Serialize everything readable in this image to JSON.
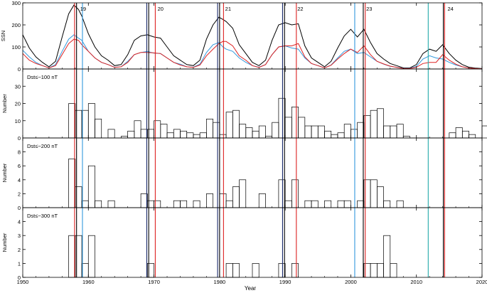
{
  "chart_data": {
    "type": "line+histogram",
    "xlabel": "Year",
    "xlim": [
      1950,
      2020
    ],
    "x_ticks": [
      "1950",
      "1960",
      "1970",
      "1980",
      "1990",
      "2000",
      "2010",
      "2020"
    ],
    "colors": {
      "ssn_total": "#000000",
      "ssn_north": "#3399dd",
      "ssn_south": "#dd2222",
      "line_navy": "#1a2a6c",
      "line_teal": "#22aaaa"
    },
    "cycles": [
      {
        "label": "19",
        "year": 1959.2
      },
      {
        "label": "20",
        "year": 1971.0
      },
      {
        "label": "21",
        "year": 1981.3
      },
      {
        "label": "22",
        "year": 1992.3
      },
      {
        "label": "23",
        "year": 2002.8
      },
      {
        "label": "24",
        "year": 2015.2
      }
    ],
    "vertical_lines": [
      {
        "year": 1957.9,
        "color": "#dd2222"
      },
      {
        "year": 1958.2,
        "color": "#000000"
      },
      {
        "year": 1959.1,
        "color": "#3399dd"
      },
      {
        "year": 1968.9,
        "color": "#1a2a6c"
      },
      {
        "year": 1969.2,
        "color": "#000000"
      },
      {
        "year": 1970.2,
        "color": "#dd2222"
      },
      {
        "year": 1979.7,
        "color": "#1a2a6c"
      },
      {
        "year": 1980.0,
        "color": "#000000"
      },
      {
        "year": 1980.6,
        "color": "#dd2222"
      },
      {
        "year": 1989.6,
        "color": "#1a2a6c"
      },
      {
        "year": 1989.9,
        "color": "#000000"
      },
      {
        "year": 1991.7,
        "color": "#dd2222"
      },
      {
        "year": 2000.6,
        "color": "#3399dd"
      },
      {
        "year": 2001.9,
        "color": "#000000"
      },
      {
        "year": 2002.2,
        "color": "#dd2222"
      },
      {
        "year": 2011.8,
        "color": "#22aaaa"
      },
      {
        "year": 2014.1,
        "color": "#000000"
      },
      {
        "year": 2014.3,
        "color": "#dd2222"
      }
    ],
    "ssn_panel": {
      "ylabel": "SSN",
      "ylim": [
        0,
        300
      ],
      "y_ticks": [
        "0",
        "100",
        "200",
        "300"
      ],
      "x": [
        1950,
        1951,
        1952,
        1953,
        1954,
        1955,
        1956,
        1957,
        1957.8,
        1958.5,
        1959,
        1960,
        1961,
        1962,
        1963,
        1964,
        1965,
        1966,
        1967,
        1968,
        1969,
        1970,
        1971,
        1972,
        1973,
        1974,
        1975,
        1976,
        1977,
        1978,
        1979,
        1979.9,
        1980.5,
        1981,
        1982,
        1983,
        1984,
        1985,
        1986,
        1987,
        1988,
        1989,
        1990,
        1991,
        1992,
        1993,
        1994,
        1995,
        1996,
        1997,
        1998,
        1999,
        2000,
        2001,
        2002,
        2003,
        2004,
        2005,
        2006,
        2007,
        2008,
        2009,
        2010,
        2011,
        2012,
        2013,
        2014,
        2015,
        2016,
        2017,
        2018,
        2019,
        2020
      ],
      "series": [
        {
          "key": "ssn_total",
          "values": [
            155,
            95,
            55,
            30,
            10,
            35,
            145,
            250,
            290,
            270,
            240,
            160,
            100,
            60,
            40,
            15,
            20,
            65,
            130,
            150,
            155,
            145,
            140,
            100,
            60,
            40,
            20,
            15,
            40,
            135,
            200,
            235,
            225,
            215,
            185,
            110,
            70,
            30,
            15,
            40,
            130,
            200,
            210,
            200,
            205,
            105,
            50,
            30,
            10,
            35,
            95,
            150,
            180,
            145,
            180,
            120,
            70,
            45,
            25,
            15,
            5,
            5,
            20,
            70,
            90,
            80,
            110,
            70,
            40,
            20,
            8,
            4,
            2
          ]
        },
        {
          "key": "ssn_north",
          "values": [
            85,
            55,
            30,
            15,
            5,
            20,
            80,
            135,
            155,
            140,
            130,
            80,
            50,
            30,
            20,
            8,
            10,
            35,
            65,
            75,
            80,
            72,
            70,
            50,
            30,
            22,
            10,
            8,
            22,
            75,
            110,
            120,
            100,
            90,
            80,
            50,
            30,
            15,
            8,
            20,
            65,
            100,
            105,
            95,
            90,
            50,
            25,
            15,
            5,
            18,
            50,
            80,
            90,
            70,
            75,
            55,
            35,
            22,
            12,
            8,
            3,
            3,
            12,
            45,
            60,
            50,
            45,
            30,
            18,
            10,
            4,
            2,
            1
          ]
        },
        {
          "key": "ssn_south",
          "values": [
            70,
            40,
            25,
            15,
            5,
            15,
            65,
            115,
            135,
            130,
            110,
            80,
            50,
            30,
            20,
            7,
            10,
            30,
            65,
            75,
            75,
            73,
            70,
            50,
            30,
            18,
            10,
            7,
            18,
            60,
            90,
            115,
            125,
            125,
            105,
            60,
            40,
            15,
            7,
            20,
            65,
            100,
            105,
            105,
            115,
            55,
            25,
            15,
            5,
            17,
            45,
            70,
            90,
            75,
            105,
            65,
            35,
            23,
            13,
            7,
            2,
            2,
            8,
            25,
            30,
            30,
            65,
            40,
            22,
            10,
            4,
            2,
            1
          ]
        }
      ]
    },
    "panels": [
      {
        "label": "Dst≤−100 nT",
        "ylabel": "Number",
        "ylim": [
          0,
          40
        ],
        "y_ticks": [
          "0",
          "10",
          "20",
          "30"
        ],
        "bins_start": 1957,
        "bin_width": 1,
        "values": [
          20,
          16,
          16,
          20,
          11,
          0,
          5,
          0,
          1,
          4,
          10,
          5,
          5,
          10,
          8,
          3,
          5,
          4,
          3,
          2,
          3,
          11,
          9,
          2,
          15,
          16,
          8,
          6,
          4,
          7,
          1,
          9,
          23,
          12,
          18,
          12,
          7,
          7,
          7,
          4,
          2,
          3,
          8,
          5,
          9,
          13,
          16,
          17,
          7,
          7,
          8,
          1,
          0,
          0,
          0,
          0,
          0,
          0,
          3,
          6,
          4,
          2,
          0,
          7,
          3,
          2,
          1
        ],
        "color": "#000000"
      },
      {
        "label": "Dst≤−200 nT",
        "ylabel": "Number",
        "ylim": [
          0,
          10
        ],
        "y_ticks": [
          "0",
          "2",
          "4",
          "6",
          "8"
        ],
        "bins_start": 1957,
        "bin_width": 1,
        "values": [
          7,
          3,
          1,
          6,
          1,
          0,
          1,
          0,
          0,
          0,
          0,
          2,
          1,
          1,
          0,
          0,
          1,
          1,
          0,
          1,
          0,
          2,
          0,
          2,
          1,
          3,
          4,
          0,
          0,
          2,
          0,
          0,
          4,
          1,
          4,
          0,
          1,
          1,
          0,
          1,
          0,
          1,
          1,
          0,
          1,
          4,
          4,
          3,
          1,
          0,
          1,
          0,
          0,
          0,
          0,
          0,
          0,
          0,
          0,
          0,
          0,
          0,
          0,
          0,
          1,
          0,
          0
        ],
        "color": "#000000"
      },
      {
        "label": "Dst≤−300 nT",
        "ylabel": "Number",
        "ylim": [
          0,
          5
        ],
        "y_ticks": [
          "0",
          "1",
          "2",
          "3",
          "4"
        ],
        "bins_start": 1957,
        "bin_width": 1,
        "values": [
          3,
          3,
          1,
          3,
          0,
          0,
          0,
          0,
          0,
          0,
          0,
          0,
          1,
          0,
          0,
          0,
          0,
          0,
          0,
          0,
          0,
          0,
          0,
          0,
          1,
          1,
          0,
          0,
          1,
          0,
          0,
          0,
          1,
          0,
          1,
          0,
          0,
          0,
          0,
          0,
          0,
          0,
          0,
          0,
          0,
          1,
          1,
          1,
          3,
          1,
          0,
          0,
          0,
          0,
          0,
          0,
          0,
          0,
          0,
          0,
          0,
          0,
          0,
          0,
          0,
          0,
          0
        ],
        "color": "#000000"
      }
    ]
  }
}
